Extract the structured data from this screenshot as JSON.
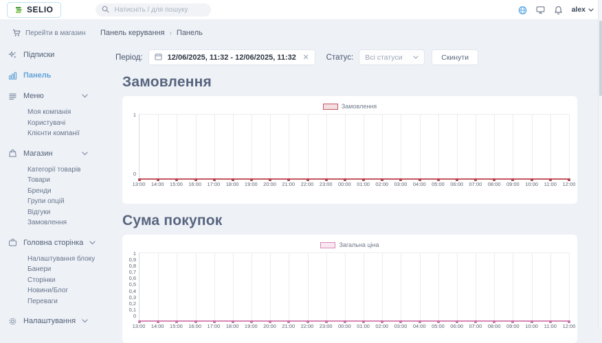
{
  "header": {
    "logo_text": "SELIO",
    "search_placeholder": "Натисніть / для пошуку",
    "user_name": "alex"
  },
  "sidebar": {
    "go_to_store": "Перейти в магазин",
    "items": [
      {
        "label": "Підписки",
        "icon": "sparkles-icon",
        "active": false,
        "expandable": false,
        "children": []
      },
      {
        "label": "Панель",
        "icon": "bar-chart-icon",
        "active": true,
        "expandable": false,
        "children": []
      },
      {
        "label": "Меню",
        "icon": "menu-icon",
        "active": false,
        "expandable": true,
        "children": [
          "Моя компанія",
          "Користувачі",
          "Клієнти компанії"
        ]
      },
      {
        "label": "Магазин",
        "icon": "shopping-bag-icon",
        "active": false,
        "expandable": true,
        "children": [
          "Категорії товарів",
          "Товари",
          "Бренди",
          "Групи опцій",
          "Відгуки",
          "Замовлення"
        ]
      },
      {
        "label": "Головна сторінка",
        "icon": "briefcase-icon",
        "active": false,
        "expandable": true,
        "children": [
          "Налаштування блоку",
          "Банери",
          "Сторінки",
          "Новини/Блог",
          "Переваги"
        ]
      },
      {
        "label": "Налаштування",
        "icon": "gear-icon",
        "active": false,
        "expandable": true,
        "children": []
      }
    ]
  },
  "breadcrumb": {
    "items": [
      "Панель керування",
      "Панель"
    ],
    "separator": "›"
  },
  "filters": {
    "period_label": "Період:",
    "period_value": "12/06/2025, 11:32 - 12/06/2025, 11:32",
    "clear_glyph": "✕",
    "status_label": "Статус:",
    "status_value": "Всі статуси",
    "reset_label": "Скинути"
  },
  "chart_data": [
    {
      "type": "line",
      "title": "Замовлення",
      "legend": "Замовлення",
      "line_color": "#c4545e",
      "marker_color": "#ae4850",
      "legend_fill": "#f3dfe1",
      "x": [
        "13:00",
        "14:00",
        "15:00",
        "16:00",
        "17:00",
        "18:00",
        "19:00",
        "20:00",
        "21:00",
        "22:00",
        "23:00",
        "00:00",
        "01:00",
        "02:00",
        "03:00",
        "04:00",
        "05:00",
        "06:00",
        "07:00",
        "08:00",
        "09:00",
        "10:00",
        "11:00",
        "12:00"
      ],
      "values": [
        0,
        0,
        0,
        0,
        0,
        0,
        0,
        0,
        0,
        0,
        0,
        0,
        0,
        0,
        0,
        0,
        0,
        0,
        0,
        0,
        0,
        0,
        0,
        0
      ],
      "ylim": [
        0,
        1
      ],
      "yticks": [
        "1",
        "0"
      ],
      "grid": true,
      "legend_position": "top-center"
    },
    {
      "type": "line",
      "title": "Сума покупок",
      "legend": "Загальна ціна",
      "line_color": "#d687b4",
      "marker_color": "#c876a6",
      "legend_fill": "#f8e7f0",
      "x": [
        "13:00",
        "14:00",
        "15:00",
        "16:00",
        "17:00",
        "18:00",
        "19:00",
        "20:00",
        "21:00",
        "22:00",
        "23:00",
        "00:00",
        "01:00",
        "02:00",
        "03:00",
        "04:00",
        "05:00",
        "06:00",
        "07:00",
        "08:00",
        "09:00",
        "10:00",
        "11:00",
        "12:00"
      ],
      "values": [
        0,
        0,
        0,
        0,
        0,
        0,
        0,
        0,
        0,
        0,
        0,
        0,
        0,
        0,
        0,
        0,
        0,
        0,
        0,
        0,
        0,
        0,
        0,
        0
      ],
      "ylim": [
        0,
        1
      ],
      "yticks": [
        "1",
        "0,9",
        "0,8",
        "0,7",
        "0,6",
        "0,5",
        "0,4",
        "0,3",
        "0,2",
        "0,1",
        "0"
      ],
      "grid": true,
      "legend_position": "top-center"
    }
  ]
}
